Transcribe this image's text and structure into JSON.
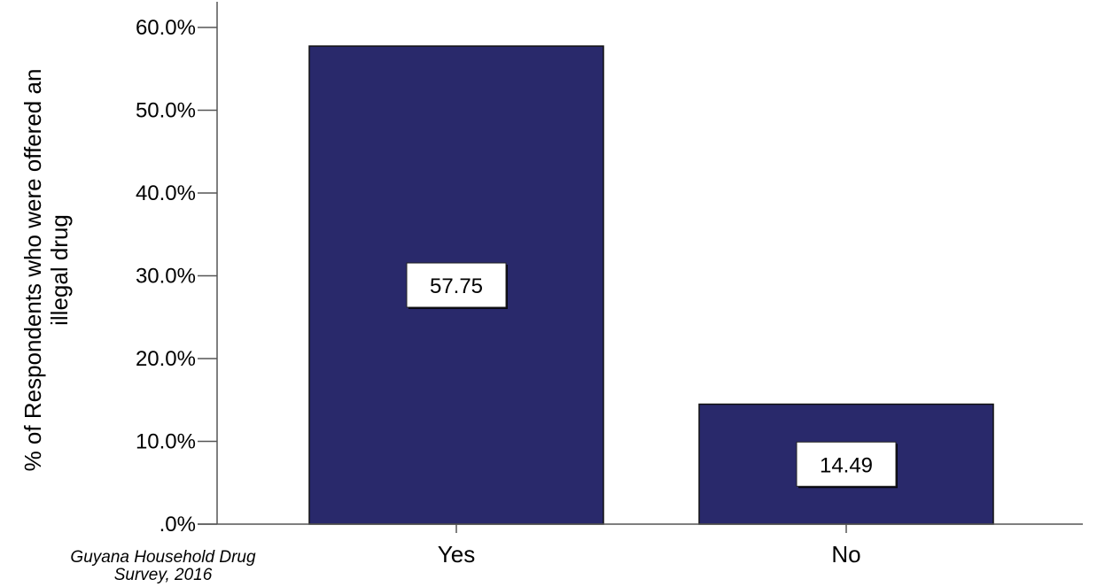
{
  "chart_data": {
    "type": "bar",
    "categories": [
      "Yes",
      "No"
    ],
    "values": [
      57.75,
      14.49
    ],
    "data_labels": [
      "57.75",
      "14.49"
    ],
    "title": "",
    "xlabel": "",
    "ylabel_lines": [
      "% of Respondents who were offered an",
      "illegal drug"
    ],
    "ylim": [
      0,
      60
    ],
    "yticks": [
      0,
      10,
      20,
      30,
      40,
      50,
      60
    ],
    "ytick_labels": [
      ".0%",
      "10.0%",
      "20.0%",
      "30.0%",
      "40.0%",
      "50.0%",
      "60.0%"
    ],
    "bar_color": "#29296b",
    "grid": false,
    "legend": "none"
  },
  "source": {
    "line1": "Guyana Household Drug",
    "line2": "Survey, 2016"
  }
}
